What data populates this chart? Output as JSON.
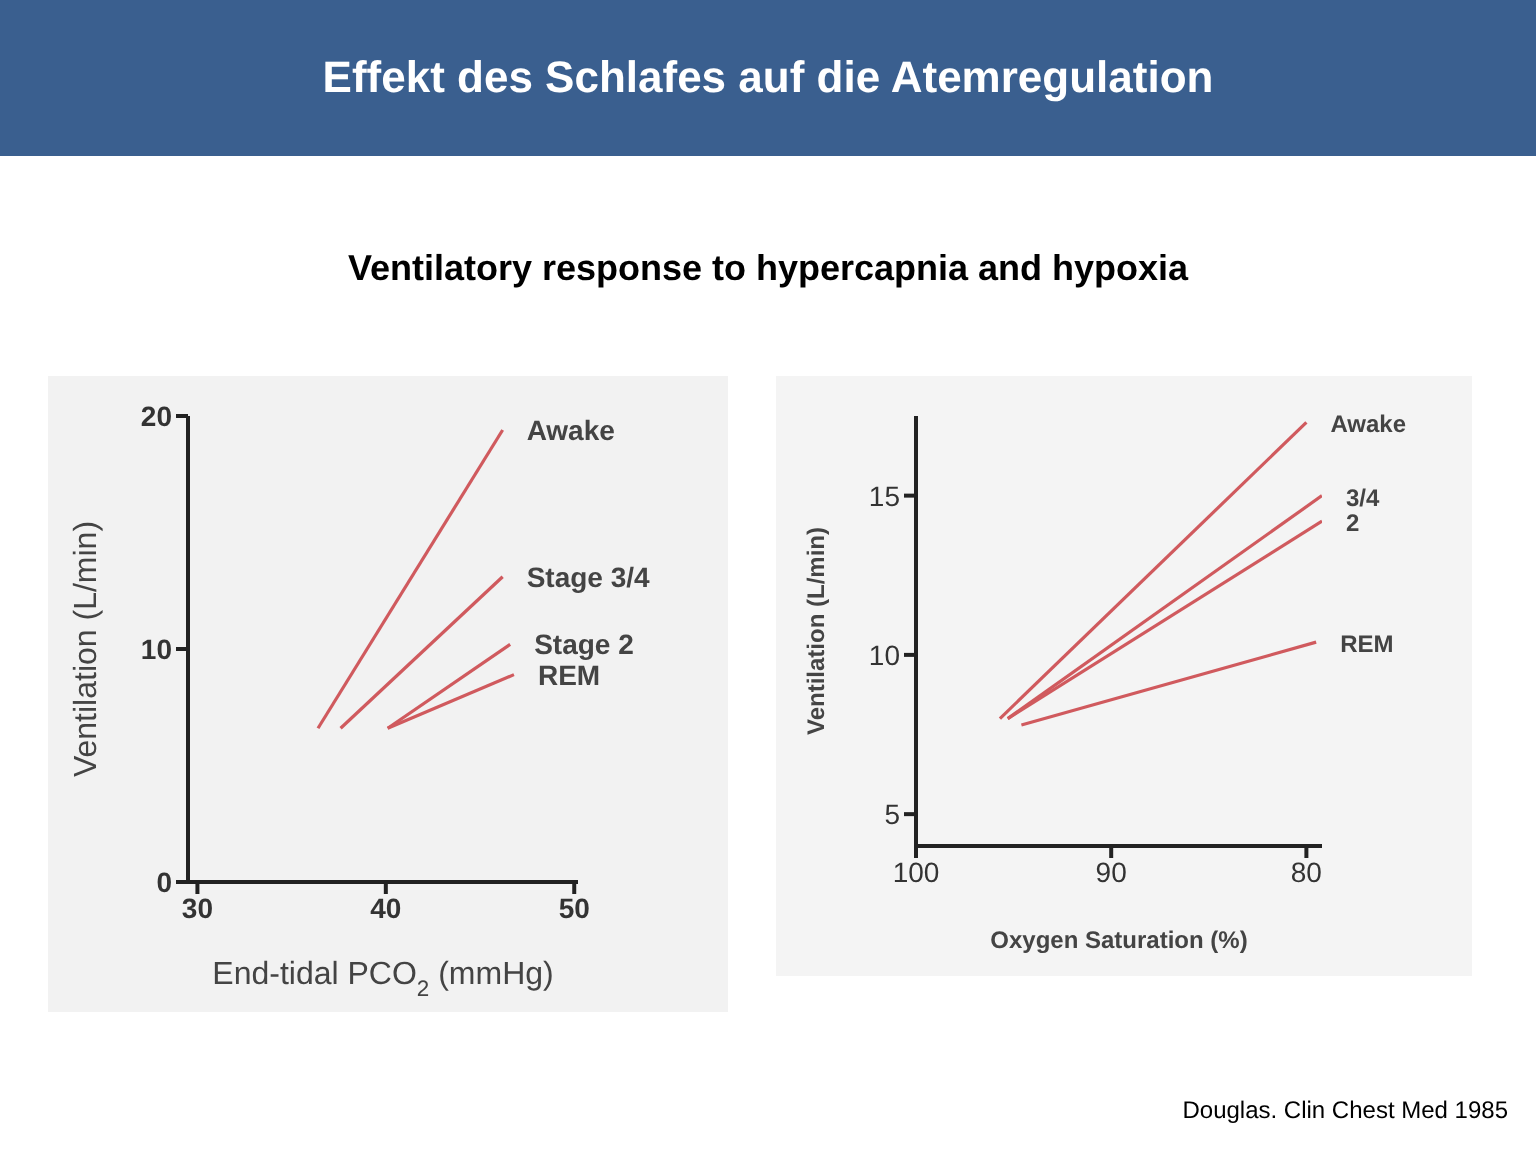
{
  "chart_data": [
    {
      "type": "line",
      "title": "Effekt des Schlafes auf die Atemregulation",
      "subtitle": "Ventilatory response to hypercapnia and hypoxia",
      "xlabel": "End-tidal PCO$_{2}$ (mmHg)",
      "ylabel": "Ventilation (L/min)",
      "xlim": [
        29.5,
        50.2
      ],
      "ylim": [
        0,
        20
      ],
      "xticks": [
        30,
        40,
        50
      ],
      "yticks": [
        0,
        10,
        20
      ],
      "series": [
        {
          "name": "Awake",
          "color": "#d05a5e",
          "x": [
            36.4,
            46.2
          ],
          "values": [
            6.6,
            19.4
          ]
        },
        {
          "name": "Stage 3/4",
          "color": "#d05a5e",
          "x": [
            37.6,
            46.2
          ],
          "values": [
            6.6,
            13.1
          ]
        },
        {
          "name": "Stage 2",
          "color": "#d05a5e",
          "x": [
            40.1,
            46.6
          ],
          "values": [
            6.6,
            10.2
          ]
        },
        {
          "name": "REM",
          "color": "#d05a5e",
          "x": [
            40.1,
            46.8
          ],
          "values": [
            6.6,
            8.9
          ]
        }
      ]
    },
    {
      "type": "line",
      "xlabel": "Oxygen Saturation (%)",
      "ylabel": "Ventilation (L/min)",
      "xlim": [
        100,
        79.2
      ],
      "ylim": [
        4,
        17.5
      ],
      "xticks": [
        100,
        90,
        80
      ],
      "yticks": [
        5,
        10,
        15
      ],
      "annotations": [
        "Douglas. Clin Chest Med 1985"
      ],
      "series": [
        {
          "name": "Awake",
          "color": "#d05a5e",
          "x": [
            95.7,
            80
          ],
          "values": [
            8.0,
            17.3
          ]
        },
        {
          "name": "3/4",
          "color": "#d05a5e",
          "x": [
            95.3,
            79.2
          ],
          "values": [
            8.0,
            15.0
          ]
        },
        {
          "name": "2",
          "color": "#d05a5e",
          "x": [
            95.3,
            79.2
          ],
          "values": [
            8.0,
            14.2
          ]
        },
        {
          "name": "REM",
          "color": "#d05a5e",
          "x": [
            94.6,
            79.5
          ],
          "values": [
            7.8,
            10.4
          ]
        }
      ]
    }
  ]
}
